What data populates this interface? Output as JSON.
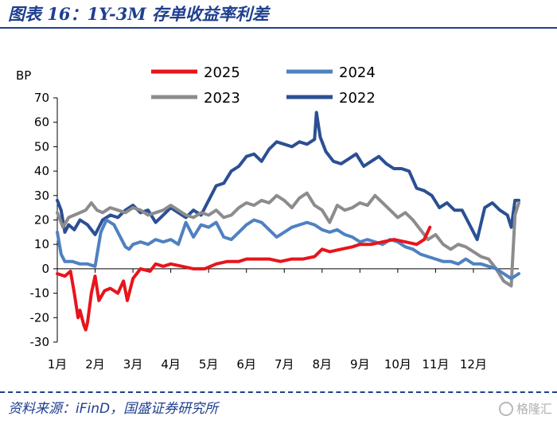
{
  "figure_title": "图表 16：1Y-3M 存单收益率利差",
  "source_note": "资料来源：iFinD，国盛证券研究所",
  "watermark": "格隆汇",
  "chart_data": {
    "type": "line",
    "ylabel": "BP",
    "ylim": [
      -30,
      70
    ],
    "yticks": [
      70,
      60,
      50,
      40,
      30,
      20,
      10,
      0,
      -10,
      -20,
      -30
    ],
    "yticklabels": [
      "70",
      "60",
      "50",
      "40",
      "30",
      "20",
      "10",
      "0",
      "-10",
      "-20",
      "-30"
    ],
    "xlim": [
      0,
      12.2
    ],
    "xticks": [
      0,
      1,
      2,
      3,
      4,
      5,
      6,
      7,
      8,
      9,
      10,
      11
    ],
    "xticklabels": [
      "1月",
      "2月",
      "3月",
      "4月",
      "5月",
      "6月",
      "7月",
      "8月",
      "9月",
      "10月",
      "11月",
      "12月"
    ],
    "legend_position": "top",
    "series": [
      {
        "name": "2025",
        "color": "#e8141b",
        "x": [
          0,
          0.2,
          0.35,
          0.45,
          0.55,
          0.6,
          0.7,
          0.75,
          0.8,
          0.9,
          1.0,
          1.1,
          1.25,
          1.4,
          1.6,
          1.75,
          1.85,
          2.0,
          2.2,
          2.45,
          2.6,
          2.8,
          3.0,
          3.3,
          3.6,
          3.9,
          4.2,
          4.5,
          4.8,
          5.0,
          5.3,
          5.6,
          5.9,
          6.2,
          6.5,
          6.8,
          7.0,
          7.2,
          7.5,
          7.8,
          8.0,
          8.3,
          8.6,
          8.9,
          9.2,
          9.5,
          9.7,
          9.85
        ],
        "y": [
          -2,
          -3,
          -1,
          -10,
          -20,
          -17,
          -23,
          -25,
          -22,
          -10,
          -3,
          -13,
          -9,
          -8,
          -10,
          -5,
          -13,
          -4,
          0,
          -1,
          2,
          1,
          2,
          1,
          0,
          0,
          2,
          3,
          3,
          4,
          4,
          4,
          3,
          4,
          4,
          5,
          8,
          7,
          8,
          9,
          10,
          10,
          11,
          12,
          11,
          10,
          12,
          17
        ]
      },
      {
        "name": "2024",
        "color": "#4f81c1",
        "x": [
          0,
          0.1,
          0.2,
          0.4,
          0.6,
          0.8,
          1.0,
          1.15,
          1.3,
          1.5,
          1.7,
          1.8,
          1.9,
          2.0,
          2.2,
          2.4,
          2.6,
          2.8,
          3.0,
          3.2,
          3.4,
          3.6,
          3.8,
          4.0,
          4.2,
          4.4,
          4.6,
          4.8,
          5.0,
          5.2,
          5.4,
          5.6,
          5.8,
          6.0,
          6.2,
          6.4,
          6.6,
          6.8,
          7.0,
          7.2,
          7.4,
          7.6,
          7.8,
          8.0,
          8.2,
          8.4,
          8.6,
          8.8,
          9.0,
          9.2,
          9.4,
          9.6,
          9.8,
          10.0,
          10.2,
          10.4,
          10.6,
          10.8,
          11.0,
          11.2,
          11.4,
          11.6,
          11.8,
          12.0,
          12.2
        ],
        "y": [
          15,
          6,
          3,
          3,
          2,
          2,
          1,
          15,
          20,
          18,
          12,
          9,
          8,
          10,
          11,
          10,
          12,
          11,
          12,
          10,
          19,
          13,
          18,
          17,
          19,
          13,
          12,
          15,
          18,
          20,
          19,
          16,
          13,
          15,
          17,
          18,
          19,
          18,
          16,
          15,
          16,
          14,
          13,
          11,
          12,
          11,
          10,
          12,
          11,
          9,
          8,
          6,
          5,
          4,
          3,
          3,
          2,
          4,
          2,
          2,
          1,
          0,
          -2,
          -4,
          -2
        ]
      },
      {
        "name": "2023",
        "color": "#8c8c8c",
        "x": [
          0,
          0.15,
          0.3,
          0.45,
          0.6,
          0.75,
          0.9,
          1.05,
          1.2,
          1.4,
          1.6,
          1.8,
          2.0,
          2.2,
          2.4,
          2.6,
          2.8,
          3.0,
          3.2,
          3.4,
          3.6,
          3.8,
          4.0,
          4.2,
          4.4,
          4.6,
          4.8,
          5.0,
          5.2,
          5.4,
          5.6,
          5.8,
          6.0,
          6.2,
          6.4,
          6.6,
          6.8,
          7.0,
          7.2,
          7.4,
          7.6,
          7.8,
          8.0,
          8.2,
          8.4,
          8.6,
          8.8,
          9.0,
          9.2,
          9.4,
          9.6,
          9.8,
          10.0,
          10.2,
          10.4,
          10.6,
          10.8,
          11.0,
          11.2,
          11.4,
          11.6,
          11.8,
          12.0,
          12.1,
          12.2
        ],
        "y": [
          23,
          17,
          21,
          22,
          23,
          24,
          27,
          24,
          23,
          25,
          24,
          23,
          25,
          24,
          22,
          23,
          24,
          26,
          24,
          22,
          21,
          23,
          22,
          24,
          21,
          22,
          25,
          27,
          26,
          28,
          27,
          30,
          28,
          25,
          29,
          31,
          26,
          24,
          19,
          26,
          24,
          25,
          27,
          26,
          30,
          27,
          24,
          21,
          23,
          20,
          16,
          12,
          14,
          10,
          8,
          10,
          9,
          7,
          5,
          4,
          0,
          -5,
          -7,
          22,
          27
        ]
      },
      {
        "name": "2022",
        "color": "#2b4f93",
        "x": [
          0,
          0.1,
          0.2,
          0.3,
          0.45,
          0.6,
          0.8,
          1.0,
          1.2,
          1.4,
          1.6,
          1.8,
          2.0,
          2.2,
          2.4,
          2.6,
          2.8,
          3.0,
          3.2,
          3.4,
          3.6,
          3.8,
          4.0,
          4.2,
          4.4,
          4.6,
          4.8,
          5.0,
          5.2,
          5.4,
          5.6,
          5.8,
          6.0,
          6.2,
          6.4,
          6.6,
          6.8,
          6.85,
          6.95,
          7.1,
          7.3,
          7.5,
          7.7,
          7.9,
          8.1,
          8.3,
          8.5,
          8.7,
          8.9,
          9.1,
          9.3,
          9.5,
          9.7,
          9.9,
          10.1,
          10.3,
          10.5,
          10.7,
          10.9,
          11.1,
          11.3,
          11.5,
          11.7,
          11.9,
          12.0,
          12.1,
          12.2
        ],
        "y": [
          28,
          24,
          15,
          18,
          16,
          20,
          18,
          14,
          20,
          22,
          21,
          24,
          26,
          23,
          24,
          19,
          22,
          25,
          23,
          21,
          24,
          22,
          28,
          34,
          35,
          40,
          42,
          46,
          47,
          44,
          49,
          52,
          51,
          50,
          52,
          51,
          53,
          64,
          54,
          48,
          44,
          43,
          45,
          47,
          42,
          44,
          46,
          43,
          41,
          41,
          40,
          33,
          32,
          30,
          25,
          27,
          24,
          24,
          18,
          12,
          25,
          27,
          24,
          22,
          17,
          28,
          28
        ]
      }
    ]
  }
}
